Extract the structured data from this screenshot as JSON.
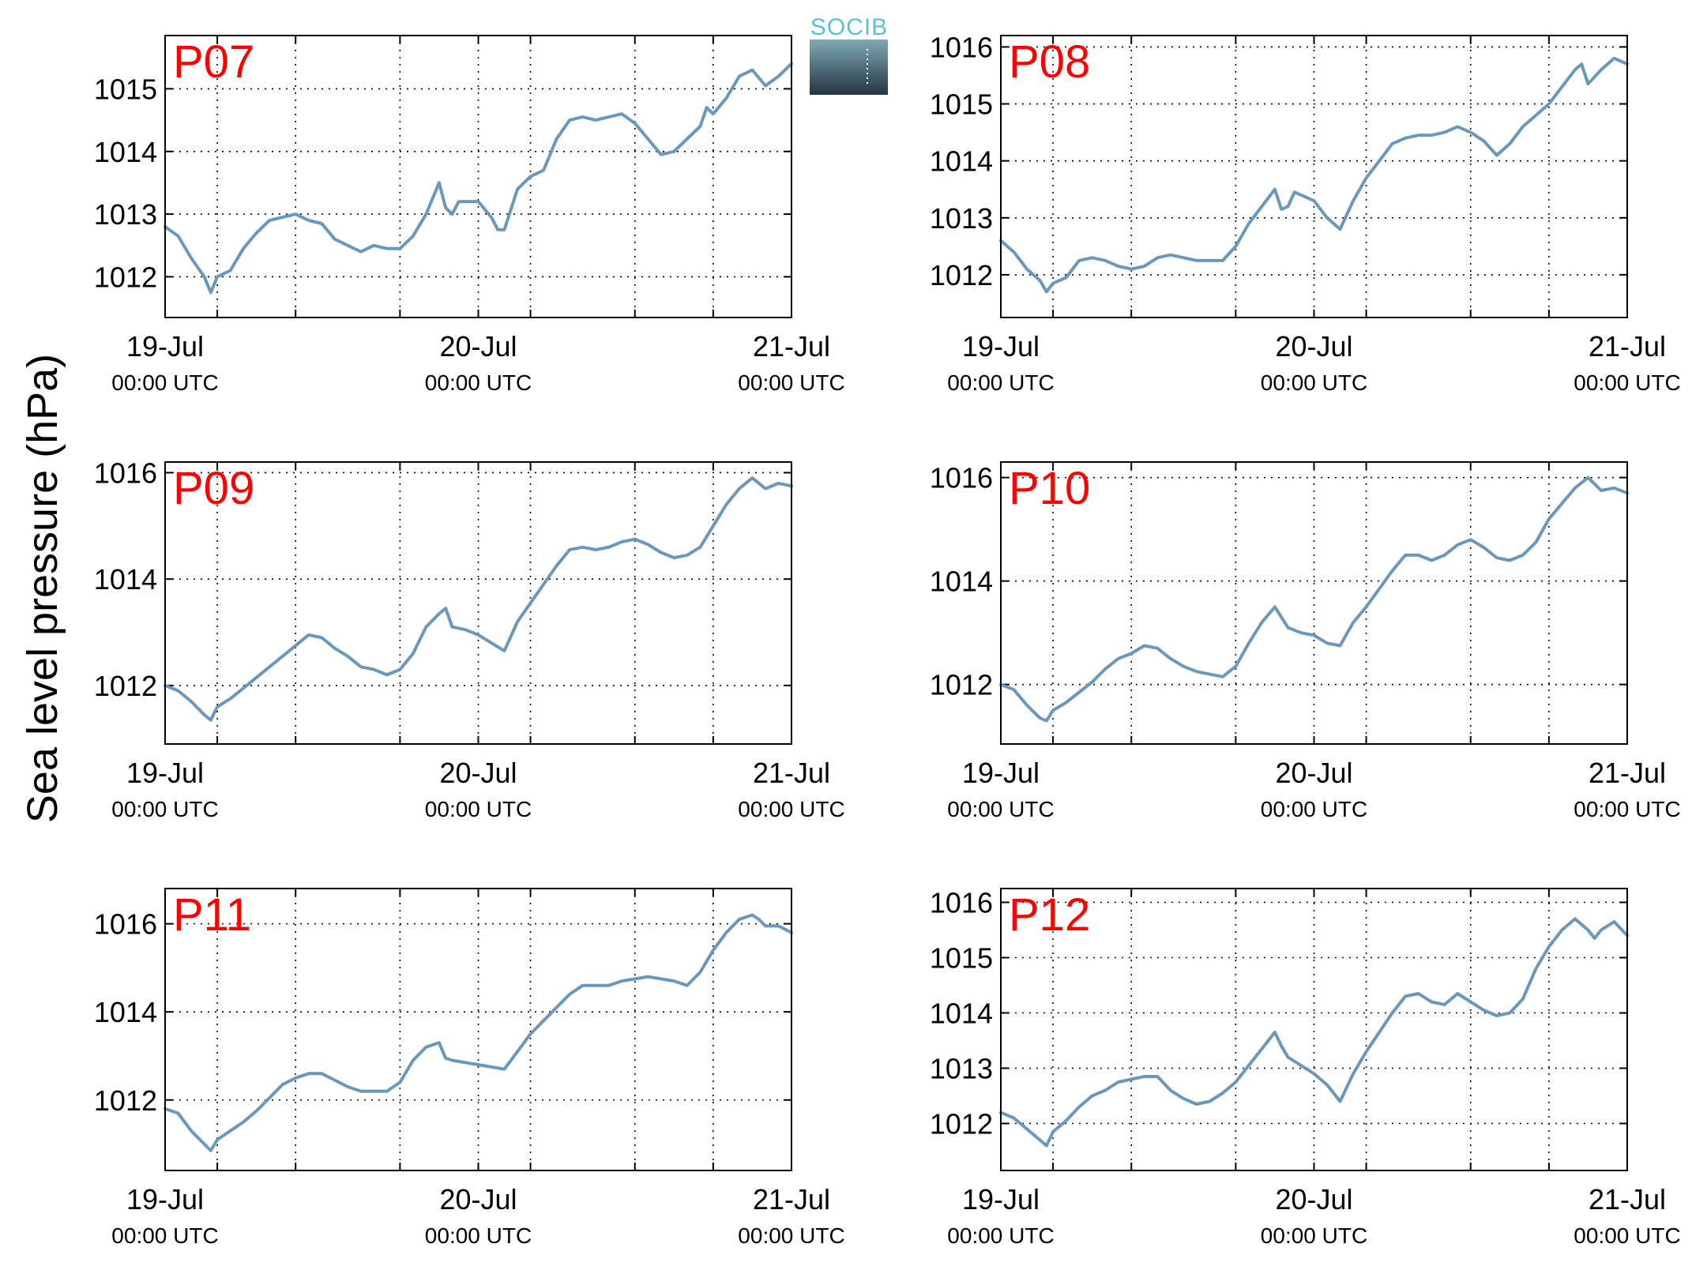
{
  "figure": {
    "ylabel": "Sea level pressure (hPa)",
    "logo_text": "SOCIB",
    "colors": {
      "line": "#6a98bb",
      "panel_label": "#ff0000",
      "axis": "#000000",
      "grid": "#000000",
      "logo_text": "#5bbfd6",
      "logo_top": "#7fa9b6",
      "logo_bottom": "#253540"
    }
  },
  "chart_data": [
    {
      "type": "line",
      "title": "P07",
      "xlim": [
        0,
        48
      ],
      "xticks": [
        {
          "value": 0,
          "date": "19-Jul",
          "time": "00:00 UTC"
        },
        {
          "value": 24,
          "date": "20-Jul",
          "time": "00:00 UTC"
        },
        {
          "value": 48,
          "date": "21-Jul",
          "time": "00:00 UTC"
        }
      ],
      "ylim": [
        1011.35,
        1015.85
      ],
      "yticks": [
        1012,
        1013,
        1014,
        1015
      ],
      "grid": true,
      "series": [
        {
          "x": [
            0,
            1,
            2,
            3,
            3.5,
            4,
            5,
            6,
            7,
            8,
            9,
            10,
            11,
            12,
            13,
            14,
            15,
            16,
            17,
            18,
            19,
            20,
            21,
            21.5,
            22,
            22.5,
            23,
            24,
            25,
            25.5,
            26,
            27,
            28,
            29,
            30,
            31,
            32,
            33,
            34,
            35,
            36,
            37,
            38,
            39,
            40,
            41,
            41.5,
            42,
            43,
            44,
            45,
            46,
            47,
            48
          ],
          "y": [
            1012.8,
            1012.65,
            1012.3,
            1012.0,
            1011.75,
            1012.0,
            1012.1,
            1012.45,
            1012.7,
            1012.9,
            1012.95,
            1013.0,
            1012.9,
            1012.85,
            1012.6,
            1012.5,
            1012.4,
            1012.5,
            1012.45,
            1012.45,
            1012.65,
            1013.0,
            1013.5,
            1013.1,
            1013.0,
            1013.2,
            1013.2,
            1013.2,
            1012.95,
            1012.75,
            1012.75,
            1013.4,
            1013.6,
            1013.7,
            1014.2,
            1014.5,
            1014.55,
            1014.5,
            1014.55,
            1014.6,
            1014.45,
            1014.2,
            1013.95,
            1014.0,
            1014.2,
            1014.4,
            1014.7,
            1014.6,
            1014.85,
            1015.2,
            1015.3,
            1015.05,
            1015.2,
            1015.4
          ]
        }
      ]
    },
    {
      "type": "line",
      "title": "P08",
      "xlim": [
        0,
        48
      ],
      "xticks": [
        {
          "value": 0,
          "date": "19-Jul",
          "time": "00:00 UTC"
        },
        {
          "value": 24,
          "date": "20-Jul",
          "time": "00:00 UTC"
        },
        {
          "value": 48,
          "date": "21-Jul",
          "time": "00:00 UTC"
        }
      ],
      "ylim": [
        1011.25,
        1016.2
      ],
      "yticks": [
        1012,
        1013,
        1014,
        1015,
        1016
      ],
      "grid": true,
      "series": [
        {
          "x": [
            0,
            1,
            2,
            3,
            3.5,
            4,
            5,
            6,
            7,
            8,
            9,
            10,
            11,
            12,
            13,
            14,
            15,
            16,
            17,
            18,
            19,
            20,
            21,
            21.5,
            22,
            22.5,
            23,
            24,
            25,
            26,
            27,
            28,
            29,
            30,
            31,
            32,
            33,
            34,
            35,
            36,
            37,
            38,
            39,
            40,
            41,
            42,
            43,
            44,
            44.5,
            45,
            46,
            47,
            48
          ],
          "y": [
            1012.6,
            1012.4,
            1012.1,
            1011.9,
            1011.7,
            1011.85,
            1011.95,
            1012.25,
            1012.3,
            1012.25,
            1012.15,
            1012.1,
            1012.15,
            1012.3,
            1012.35,
            1012.3,
            1012.25,
            1012.25,
            1012.25,
            1012.5,
            1012.9,
            1013.2,
            1013.5,
            1013.15,
            1013.2,
            1013.45,
            1013.4,
            1013.3,
            1013.0,
            1012.8,
            1013.3,
            1013.7,
            1014.0,
            1014.3,
            1014.4,
            1014.45,
            1014.45,
            1014.5,
            1014.6,
            1014.5,
            1014.35,
            1014.1,
            1014.3,
            1014.6,
            1014.8,
            1015.0,
            1015.3,
            1015.6,
            1015.7,
            1015.35,
            1015.6,
            1015.8,
            1015.7
          ]
        }
      ]
    },
    {
      "type": "line",
      "title": "P09",
      "xlim": [
        0,
        48
      ],
      "xticks": [
        {
          "value": 0,
          "date": "19-Jul",
          "time": "00:00 UTC"
        },
        {
          "value": 24,
          "date": "20-Jul",
          "time": "00:00 UTC"
        },
        {
          "value": 48,
          "date": "21-Jul",
          "time": "00:00 UTC"
        }
      ],
      "ylim": [
        1010.9,
        1016.2
      ],
      "yticks": [
        1012,
        1014,
        1016
      ],
      "grid": true,
      "series": [
        {
          "x": [
            0,
            1,
            2,
            3,
            3.5,
            4,
            5,
            6,
            7,
            8,
            9,
            10,
            11,
            12,
            13,
            14,
            15,
            16,
            17,
            18,
            19,
            20,
            21,
            21.5,
            22,
            23,
            24,
            25,
            26,
            27,
            28,
            29,
            30,
            31,
            32,
            33,
            34,
            35,
            36,
            37,
            38,
            39,
            40,
            41,
            42,
            43,
            44,
            45,
            46,
            47,
            48
          ],
          "y": [
            1012.0,
            1011.9,
            1011.7,
            1011.45,
            1011.35,
            1011.6,
            1011.75,
            1011.95,
            1012.15,
            1012.35,
            1012.55,
            1012.75,
            1012.95,
            1012.9,
            1012.7,
            1012.55,
            1012.35,
            1012.3,
            1012.2,
            1012.3,
            1012.6,
            1013.1,
            1013.35,
            1013.45,
            1013.1,
            1013.05,
            1012.95,
            1012.8,
            1012.65,
            1013.2,
            1013.55,
            1013.9,
            1014.25,
            1014.55,
            1014.6,
            1014.55,
            1014.6,
            1014.7,
            1014.75,
            1014.65,
            1014.5,
            1014.4,
            1014.45,
            1014.6,
            1015.0,
            1015.4,
            1015.7,
            1015.9,
            1015.7,
            1015.8,
            1015.75
          ]
        }
      ]
    },
    {
      "type": "line",
      "title": "P10",
      "xlim": [
        0,
        48
      ],
      "xticks": [
        {
          "value": 0,
          "date": "19-Jul",
          "time": "00:00 UTC"
        },
        {
          "value": 24,
          "date": "20-Jul",
          "time": "00:00 UTC"
        },
        {
          "value": 48,
          "date": "21-Jul",
          "time": "00:00 UTC"
        }
      ],
      "ylim": [
        1010.85,
        1016.3
      ],
      "yticks": [
        1012,
        1014,
        1016
      ],
      "grid": true,
      "series": [
        {
          "x": [
            0,
            1,
            2,
            3,
            3.5,
            4,
            5,
            6,
            7,
            8,
            9,
            10,
            11,
            12,
            13,
            14,
            15,
            16,
            17,
            18,
            19,
            20,
            21,
            21.5,
            22,
            23,
            24,
            25,
            26,
            27,
            28,
            29,
            30,
            31,
            32,
            33,
            34,
            35,
            36,
            37,
            38,
            39,
            40,
            41,
            42,
            43,
            44,
            45,
            46,
            47,
            48
          ],
          "y": [
            1012.0,
            1011.9,
            1011.6,
            1011.35,
            1011.3,
            1011.5,
            1011.65,
            1011.85,
            1012.05,
            1012.3,
            1012.5,
            1012.6,
            1012.75,
            1012.7,
            1012.5,
            1012.35,
            1012.25,
            1012.2,
            1012.15,
            1012.35,
            1012.8,
            1013.2,
            1013.5,
            1013.3,
            1013.1,
            1013.0,
            1012.95,
            1012.8,
            1012.75,
            1013.2,
            1013.5,
            1013.85,
            1014.2,
            1014.5,
            1014.5,
            1014.4,
            1014.5,
            1014.7,
            1014.8,
            1014.65,
            1014.45,
            1014.4,
            1014.5,
            1014.75,
            1015.2,
            1015.5,
            1015.8,
            1016.0,
            1015.75,
            1015.8,
            1015.7
          ]
        }
      ]
    },
    {
      "type": "line",
      "title": "P11",
      "xlim": [
        0,
        48
      ],
      "xticks": [
        {
          "value": 0,
          "date": "19-Jul",
          "time": "00:00 UTC"
        },
        {
          "value": 24,
          "date": "20-Jul",
          "time": "00:00 UTC"
        },
        {
          "value": 48,
          "date": "21-Jul",
          "time": "00:00 UTC"
        }
      ],
      "ylim": [
        1010.4,
        1016.8
      ],
      "yticks": [
        1012,
        1014,
        1016
      ],
      "grid": true,
      "series": [
        {
          "x": [
            0,
            1,
            2,
            3,
            3.5,
            4,
            5,
            6,
            7,
            8,
            9,
            10,
            11,
            12,
            13,
            14,
            15,
            16,
            17,
            18,
            19,
            20,
            21,
            21.5,
            22,
            23,
            24,
            25,
            26,
            27,
            28,
            29,
            30,
            31,
            32,
            33,
            34,
            35,
            36,
            37,
            38,
            39,
            40,
            41,
            42,
            43,
            44,
            45,
            45.5,
            46,
            47,
            48
          ],
          "y": [
            1011.8,
            1011.7,
            1011.3,
            1011.0,
            1010.85,
            1011.1,
            1011.3,
            1011.5,
            1011.75,
            1012.05,
            1012.35,
            1012.5,
            1012.6,
            1012.6,
            1012.45,
            1012.3,
            1012.2,
            1012.2,
            1012.2,
            1012.4,
            1012.9,
            1013.2,
            1013.3,
            1012.95,
            1012.9,
            1012.85,
            1012.8,
            1012.75,
            1012.7,
            1013.1,
            1013.5,
            1013.8,
            1014.1,
            1014.4,
            1014.6,
            1014.6,
            1014.6,
            1014.7,
            1014.75,
            1014.8,
            1014.75,
            1014.7,
            1014.6,
            1014.9,
            1015.4,
            1015.8,
            1016.1,
            1016.2,
            1016.1,
            1015.95,
            1015.95,
            1015.8
          ]
        }
      ]
    },
    {
      "type": "line",
      "title": "P12",
      "xlim": [
        0,
        48
      ],
      "xticks": [
        {
          "value": 0,
          "date": "19-Jul",
          "time": "00:00 UTC"
        },
        {
          "value": 24,
          "date": "20-Jul",
          "time": "00:00 UTC"
        },
        {
          "value": 48,
          "date": "21-Jul",
          "time": "00:00 UTC"
        }
      ],
      "ylim": [
        1011.15,
        1016.25
      ],
      "yticks": [
        1012,
        1013,
        1014,
        1015,
        1016
      ],
      "grid": true,
      "series": [
        {
          "x": [
            0,
            1,
            2,
            3,
            3.5,
            4,
            5,
            6,
            7,
            8,
            9,
            10,
            11,
            12,
            13,
            14,
            15,
            16,
            17,
            18,
            19,
            20,
            21,
            21.5,
            22,
            23,
            24,
            25,
            26,
            27,
            28,
            29,
            30,
            31,
            32,
            33,
            34,
            35,
            36,
            37,
            38,
            39,
            40,
            41,
            42,
            43,
            44,
            45,
            45.5,
            46,
            47,
            48
          ],
          "y": [
            1012.2,
            1012.1,
            1011.9,
            1011.7,
            1011.6,
            1011.85,
            1012.05,
            1012.3,
            1012.5,
            1012.6,
            1012.75,
            1012.8,
            1012.85,
            1012.85,
            1012.6,
            1012.45,
            1012.35,
            1012.4,
            1012.55,
            1012.75,
            1013.05,
            1013.35,
            1013.65,
            1013.4,
            1013.2,
            1013.05,
            1012.9,
            1012.7,
            1012.4,
            1012.9,
            1013.3,
            1013.65,
            1014.0,
            1014.3,
            1014.35,
            1014.2,
            1014.15,
            1014.35,
            1014.2,
            1014.05,
            1013.95,
            1014.0,
            1014.25,
            1014.8,
            1015.2,
            1015.5,
            1015.7,
            1015.5,
            1015.35,
            1015.5,
            1015.65,
            1015.4
          ]
        }
      ]
    }
  ]
}
